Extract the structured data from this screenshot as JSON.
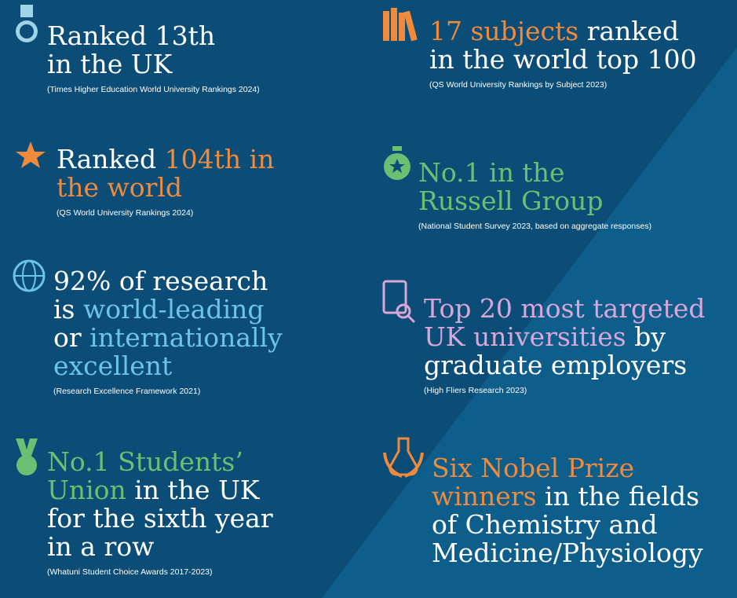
{
  "palette": {
    "white": "#ffffff",
    "orange": "#f08a3c",
    "blue": "#6ec3e8",
    "green": "#6cbf72",
    "pink": "#d9a6d9"
  },
  "stats": [
    {
      "lines": [
        [
          {
            "text": "Ranked 13th",
            "color": "white"
          }
        ],
        [
          {
            "text": "in the UK",
            "color": "white"
          }
        ]
      ],
      "source": "(Times Higher Education World University Rankings 2024)"
    },
    {
      "lines": [
        [
          {
            "text": "Ranked ",
            "color": "white"
          },
          {
            "text": "104th in",
            "color": "orange"
          }
        ],
        [
          {
            "text": "the world",
            "color": "orange"
          }
        ]
      ],
      "source": "(QS World University Rankings 2024)"
    },
    {
      "lines": [
        [
          {
            "text": "92% of research",
            "color": "white"
          }
        ],
        [
          {
            "text": "is ",
            "color": "white"
          },
          {
            "text": "world-leading",
            "color": "blue"
          }
        ],
        [
          {
            "text": "or ",
            "color": "white"
          },
          {
            "text": "internationally",
            "color": "blue"
          }
        ],
        [
          {
            "text": "excellent",
            "color": "blue"
          }
        ]
      ],
      "source": "(Research Excellence Framework 2021)"
    },
    {
      "lines": [
        [
          {
            "text": "No.1 Students’",
            "color": "green"
          }
        ],
        [
          {
            "text": "Union",
            "color": "green"
          },
          {
            "text": " in the UK",
            "color": "white"
          }
        ],
        [
          {
            "text": "for the sixth year",
            "color": "white"
          }
        ],
        [
          {
            "text": "in a row",
            "color": "white"
          }
        ]
      ],
      "source": "(Whatuni Student Choice Awards 2017-2023)"
    },
    {
      "lines": [
        [
          {
            "text": "17 subjects",
            "color": "orange"
          },
          {
            "text": " ranked",
            "color": "white"
          }
        ],
        [
          {
            "text": "in the world top 100",
            "color": "white"
          }
        ]
      ],
      "source": "(QS World University Rankings by Subject 2023)"
    },
    {
      "lines": [
        [
          {
            "text": "No.1 in the",
            "color": "green"
          }
        ],
        [
          {
            "text": "Russell Group",
            "color": "green"
          }
        ]
      ],
      "source": "(National Student Survey 2023, based on aggregate responses)"
    },
    {
      "lines": [
        [
          {
            "text": "Top 20 most targeted",
            "color": "pink"
          }
        ],
        [
          {
            "text": "UK universities",
            "color": "pink"
          },
          {
            "text": " by",
            "color": "white"
          }
        ],
        [
          {
            "text": "graduate employers",
            "color": "white"
          }
        ]
      ],
      "source": "(High Fliers Research 2023)"
    },
    {
      "lines": [
        [
          {
            "text": "Six Nobel Prize",
            "color": "orange"
          }
        ],
        [
          {
            "text": "winners",
            "color": "orange"
          },
          {
            "text": " in the fields",
            "color": "white"
          }
        ],
        [
          {
            "text": "of Chemistry and",
            "color": "white"
          }
        ],
        [
          {
            "text": "Medicine/Physiology",
            "color": "white"
          }
        ]
      ]
    }
  ]
}
